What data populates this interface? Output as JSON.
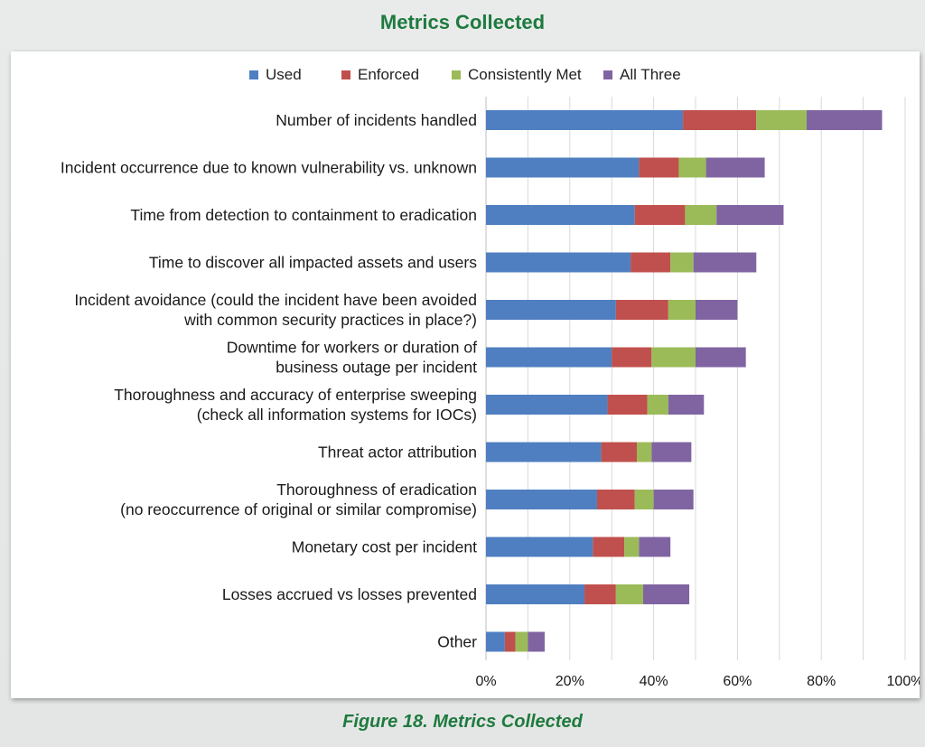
{
  "page": {
    "title": "Metrics Collected",
    "caption": "Figure 18. Metrics Collected"
  },
  "colors": {
    "used": "#4f7fc1",
    "enforced": "#c0504d",
    "consistently_met": "#9bbb59",
    "all_three": "#8064a2",
    "title_green": "#1f7a3f"
  },
  "chart_data": {
    "type": "bar",
    "orientation": "horizontal",
    "stacked": true,
    "categories": [
      [
        "Number of incidents handled"
      ],
      [
        "Incident occurrence due to known vulnerability vs. unknown"
      ],
      [
        "Time from detection to containment to eradication"
      ],
      [
        "Time to discover all impacted assets and users"
      ],
      [
        "Incident avoidance (could the incident have been avoided",
        "with common security practices in place?)"
      ],
      [
        "Downtime for workers or duration of",
        "business outage per incident"
      ],
      [
        "Thoroughness and accuracy of enterprise sweeping",
        "(check all information systems for IOCs)"
      ],
      [
        "Threat actor attribution"
      ],
      [
        "Thoroughness of eradication",
        "(no reoccurrence of original or similar compromise)"
      ],
      [
        "Monetary cost per incident"
      ],
      [
        "Losses accrued vs losses prevented"
      ],
      [
        "Other"
      ]
    ],
    "series": [
      {
        "name": "Used",
        "color": "#4f7fc1",
        "values": [
          47,
          36.5,
          35.5,
          34.5,
          31,
          30,
          29,
          27.5,
          26.5,
          25.5,
          23.5,
          4.5
        ]
      },
      {
        "name": "Enforced",
        "color": "#c0504d",
        "values": [
          17.5,
          9.5,
          12,
          9.5,
          12.5,
          9.5,
          9.5,
          8.5,
          9,
          7.5,
          7.5,
          2.5
        ]
      },
      {
        "name": "Consistently Met",
        "color": "#9bbb59",
        "values": [
          12,
          6.5,
          7.5,
          5.5,
          6.5,
          10.5,
          5,
          3.5,
          4.5,
          3.5,
          6.5,
          3
        ]
      },
      {
        "name": "All Three",
        "color": "#8064a2",
        "values": [
          18,
          14,
          16,
          15,
          10,
          12,
          8.5,
          9.5,
          9.5,
          7.5,
          11,
          4
        ]
      }
    ],
    "xlim": [
      0,
      100
    ],
    "xticks": [
      "0%",
      "20%",
      "40%",
      "60%",
      "80%",
      "100%"
    ],
    "xtick_values": [
      0,
      20,
      40,
      60,
      80,
      100
    ],
    "grid": true,
    "legend_position": "top"
  }
}
